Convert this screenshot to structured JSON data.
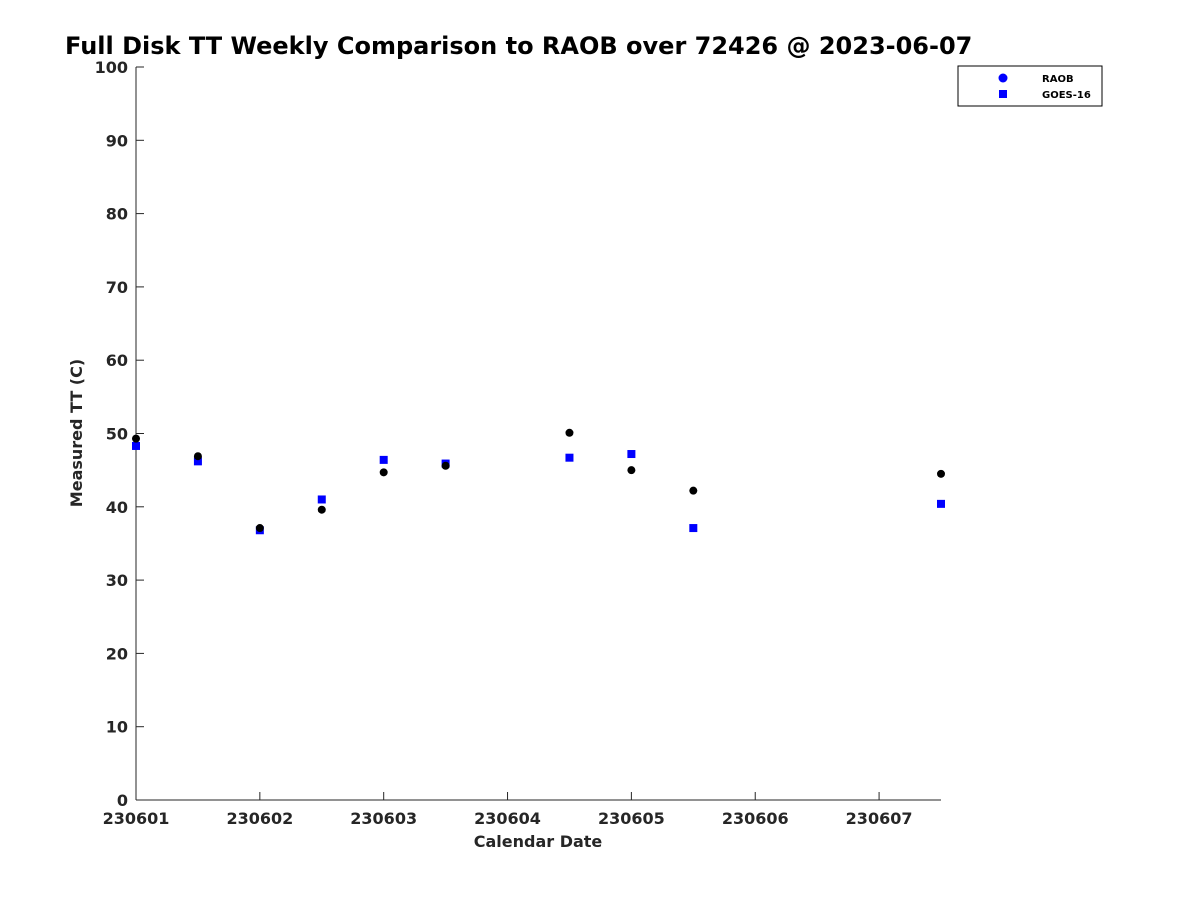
{
  "chart_data": {
    "type": "scatter",
    "title": "Full Disk TT Weekly Comparison to RAOB over 72426 @ 2023-06-07",
    "xlabel": "Calendar Date",
    "ylabel": "Measured TT (C)",
    "xlim": [
      230601,
      230607.5
    ],
    "ylim": [
      0,
      100
    ],
    "x_ticks": [
      {
        "value": 230601,
        "label": "230601"
      },
      {
        "value": 230602,
        "label": "230602"
      },
      {
        "value": 230603,
        "label": "230603"
      },
      {
        "value": 230604,
        "label": "230604"
      },
      {
        "value": 230605,
        "label": "230605"
      },
      {
        "value": 230606,
        "label": "230606"
      },
      {
        "value": 230607,
        "label": "230607"
      }
    ],
    "y_ticks": [
      0,
      10,
      20,
      30,
      40,
      50,
      60,
      70,
      80,
      90,
      100
    ],
    "grid": false,
    "legend_position": "top-right",
    "series": [
      {
        "name": "RAOB",
        "legend_marker": "circle",
        "legend_color": "#0000ff",
        "point_color": "#000000",
        "x": [
          230601,
          230601.5,
          230602,
          230602.5,
          230603,
          230603.5,
          230604.5,
          230605,
          230605.5,
          230607.5
        ],
        "y": [
          49.3,
          46.9,
          37.1,
          39.6,
          44.7,
          45.6,
          50.1,
          45.0,
          42.2,
          44.5
        ]
      },
      {
        "name": "GOES-16",
        "legend_marker": "square",
        "legend_color": "#0000ff",
        "point_color": "#0000ff",
        "x": [
          230601,
          230601.5,
          230602,
          230602.5,
          230603,
          230603.5,
          230604.5,
          230605,
          230605.5,
          230607.5
        ],
        "y": [
          48.3,
          46.2,
          36.8,
          41.0,
          46.4,
          45.9,
          46.7,
          47.2,
          37.1,
          40.4
        ]
      }
    ]
  }
}
